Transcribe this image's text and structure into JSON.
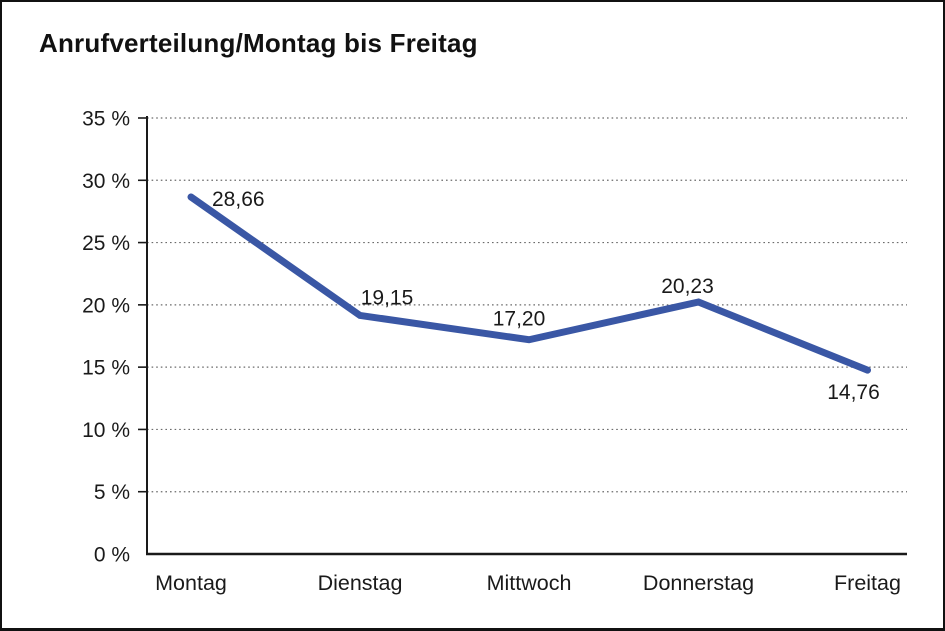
{
  "chart_data": {
    "type": "line",
    "title": "Anrufverteilung/Montag bis Freitag",
    "categories": [
      "Montag",
      "Dienstag",
      "Mittwoch",
      "Donnerstag",
      "Freitag"
    ],
    "values": [
      28.66,
      19.15,
      17.2,
      20.23,
      14.76
    ],
    "value_labels": [
      "28,66",
      "19,15",
      "17,20",
      "20,23",
      "14,76"
    ],
    "xlabel": "",
    "ylabel": "",
    "ylim": [
      0,
      35
    ],
    "y_step": 5,
    "y_tick_labels": [
      "0 %",
      "5 %",
      "10 %",
      "15 %",
      "20 %",
      "25 %",
      "30 %",
      "35 %"
    ],
    "grid": "horizontal-dotted",
    "legend": "none",
    "label_positions": [
      "right",
      "above",
      "above",
      "above",
      "below"
    ],
    "colors": {
      "line": "#3A57A5",
      "text": "#1a1a1a",
      "axis": "#1a1a1a",
      "gridline": "#6b6b6b",
      "background": "#ffffff"
    }
  }
}
